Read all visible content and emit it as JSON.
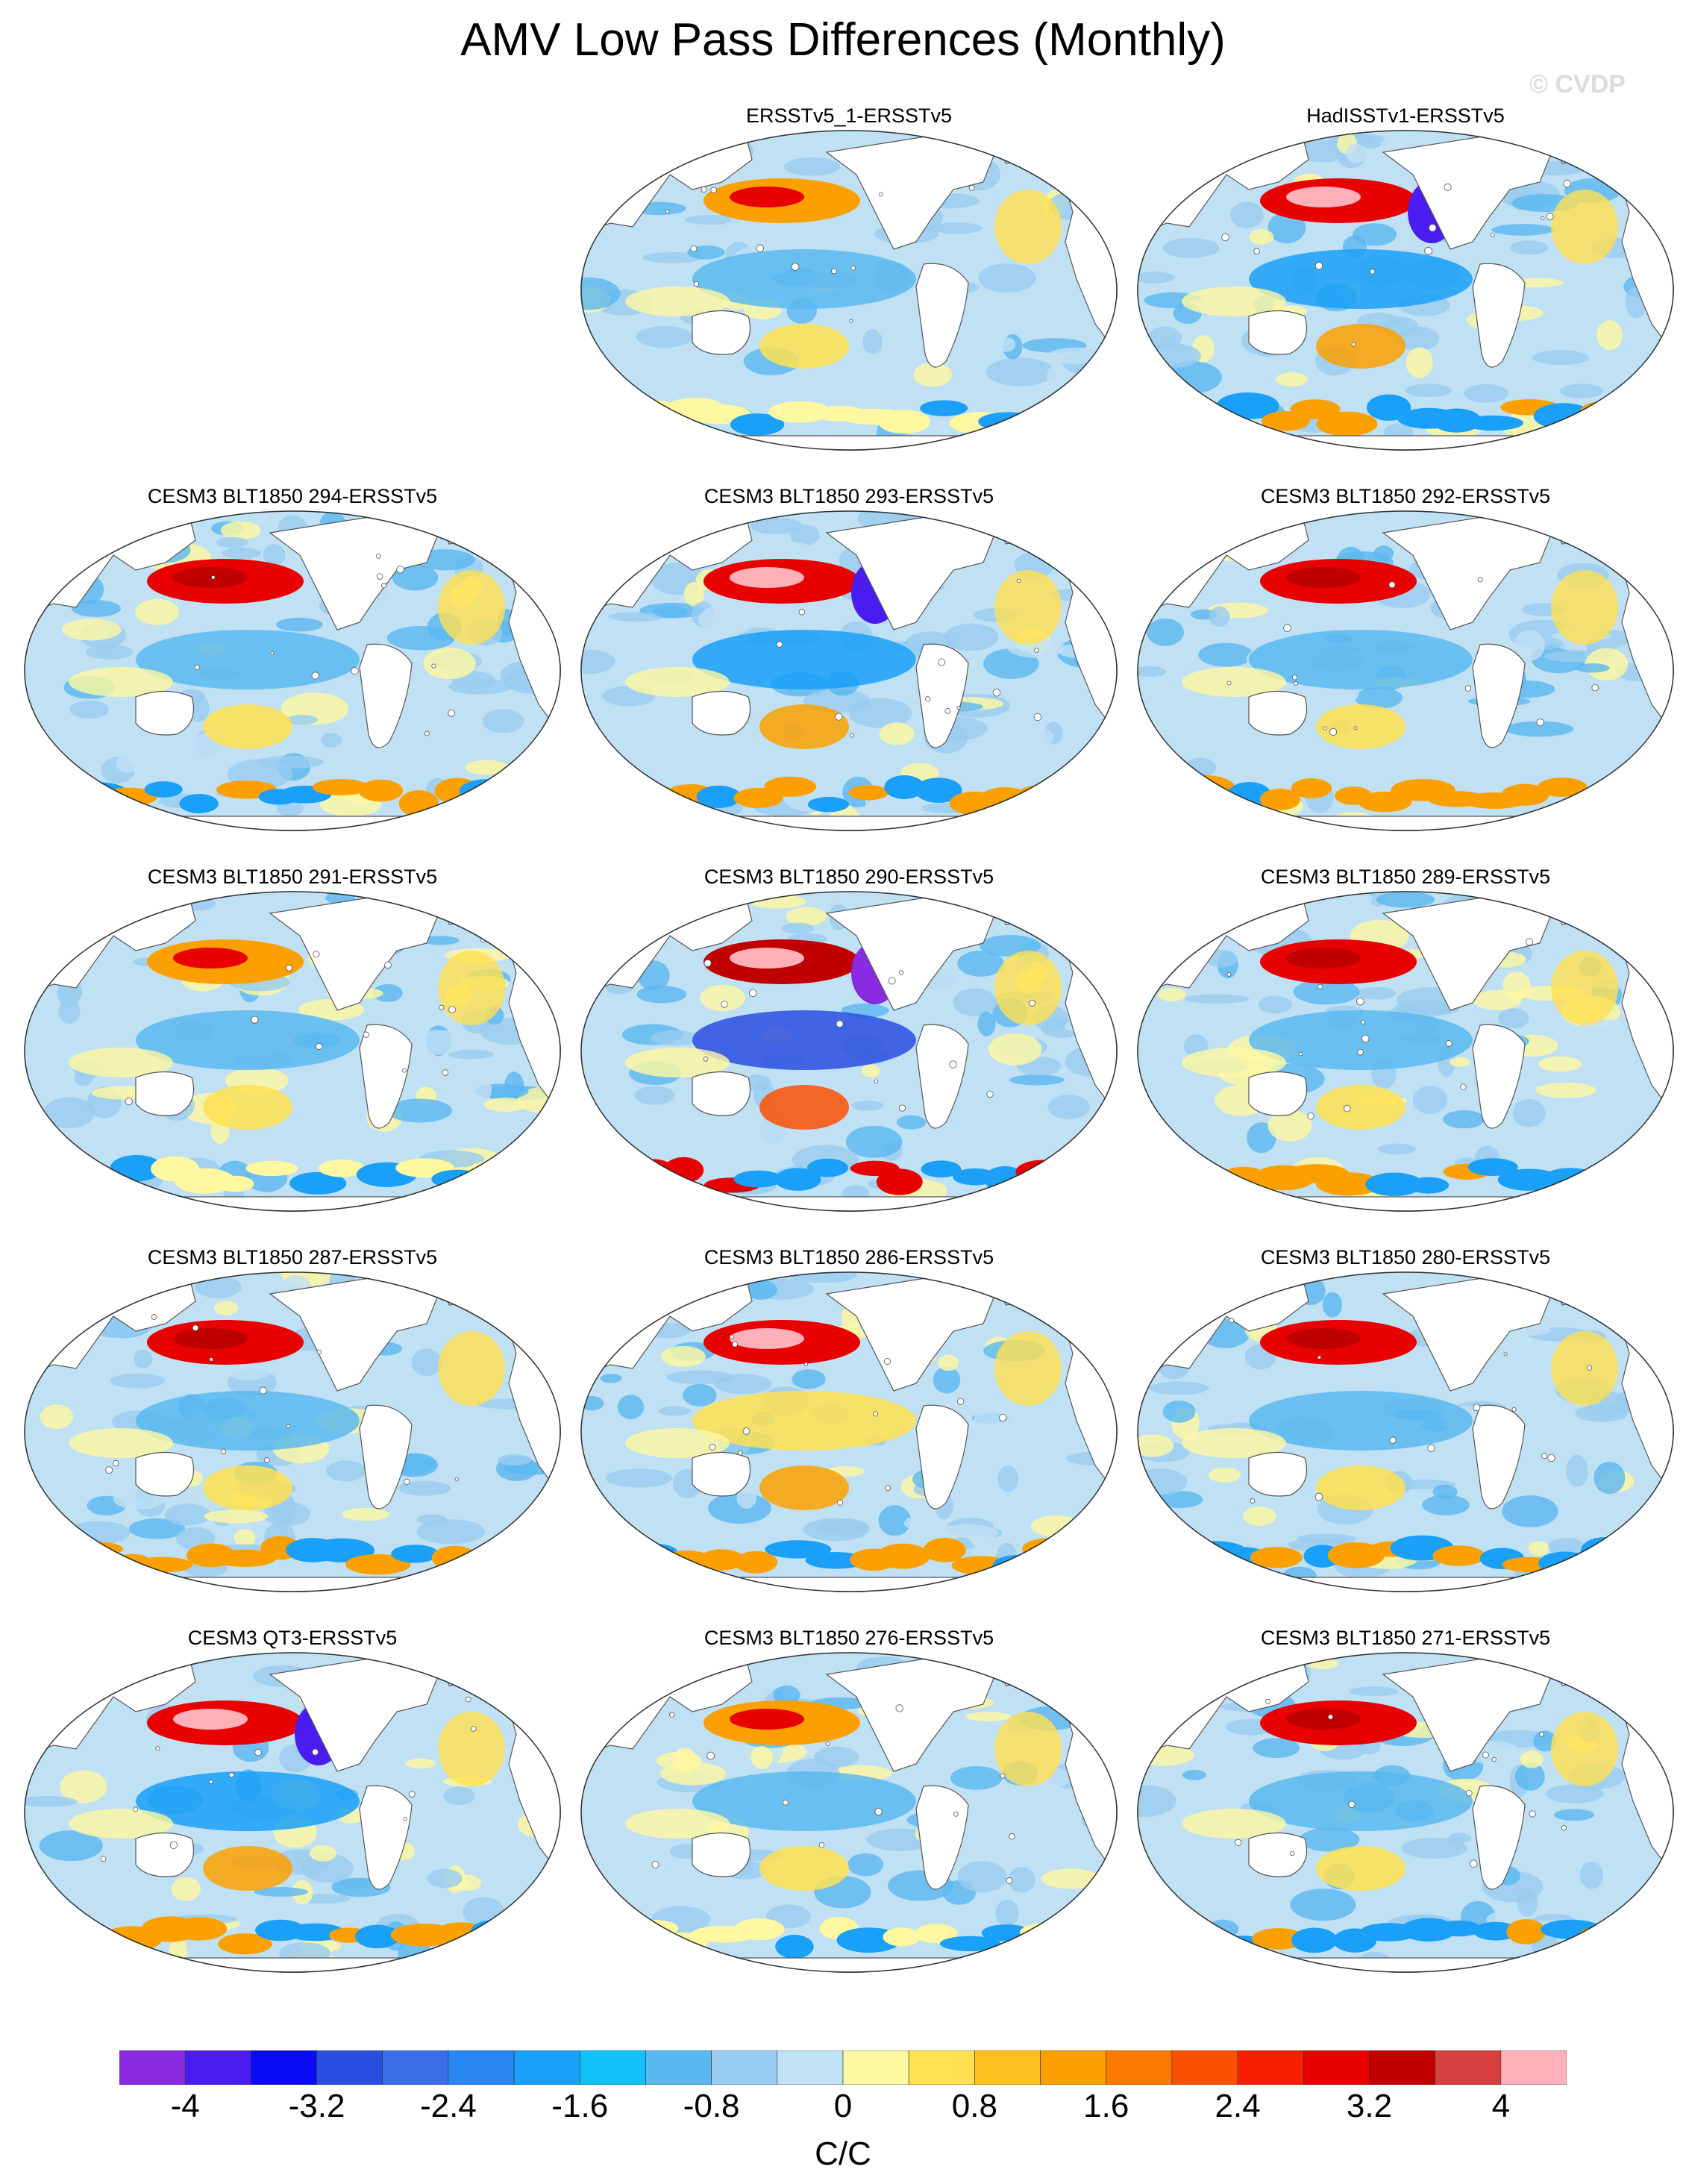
{
  "figure": {
    "title": "AMV Low Pass Differences (Monthly)",
    "credit": "© CVDP"
  },
  "panels": [
    {
      "title": "ERSSTv5_1-ERSSTv5",
      "row": 0,
      "col": 1,
      "pattern": "moderate"
    },
    {
      "title": "HadISSTv1-ERSSTv5",
      "row": 0,
      "col": 2,
      "pattern": "cold-npac"
    },
    {
      "title": "CESM3 BLT1850 294-ERSSTv5",
      "row": 1,
      "col": 0,
      "pattern": "warm-npac"
    },
    {
      "title": "CESM3 BLT1850 293-ERSSTv5",
      "row": 1,
      "col": 1,
      "pattern": "cold-npac"
    },
    {
      "title": "CESM3 BLT1850 292-ERSSTv5",
      "row": 1,
      "col": 2,
      "pattern": "warm-npac"
    },
    {
      "title": "CESM3 BLT1850 291-ERSSTv5",
      "row": 2,
      "col": 0,
      "pattern": "moderate"
    },
    {
      "title": "CESM3 BLT1850 290-ERSSTv5",
      "row": 2,
      "col": 1,
      "pattern": "strong"
    },
    {
      "title": "CESM3 BLT1850 289-ERSSTv5",
      "row": 2,
      "col": 2,
      "pattern": "warm-npac"
    },
    {
      "title": "CESM3 BLT1850 287-ERSSTv5",
      "row": 3,
      "col": 0,
      "pattern": "warm-npac"
    },
    {
      "title": "CESM3 BLT1850 286-ERSSTv5",
      "row": 3,
      "col": 1,
      "pattern": "warm-tropics"
    },
    {
      "title": "CESM3 BLT1850 280-ERSSTv5",
      "row": 3,
      "col": 2,
      "pattern": "warm-npac"
    },
    {
      "title": "CESM3 QT3-ERSSTv5",
      "row": 4,
      "col": 0,
      "pattern": "cold-npac"
    },
    {
      "title": "CESM3 BLT1850 276-ERSSTv5",
      "row": 4,
      "col": 1,
      "pattern": "moderate"
    },
    {
      "title": "CESM3 BLT1850 271-ERSSTv5",
      "row": 4,
      "col": 2,
      "pattern": "warm-npac"
    }
  ],
  "colorbar": {
    "colors": [
      "#8a2be2",
      "#4b1cf0",
      "#0a0af5",
      "#2a4ee0",
      "#3a6ee8",
      "#2a86f2",
      "#1aa0f8",
      "#10c0f8",
      "#5ab8f0",
      "#98ccf0",
      "#c0e0f4",
      "#fff8a0",
      "#ffe050",
      "#fcc020",
      "#fca000",
      "#fc7800",
      "#fc5000",
      "#f82000",
      "#e80000",
      "#c00000",
      "#d84040",
      "#ffb0b8"
    ],
    "labels": [
      "-4",
      "-3.2",
      "-2.4",
      "-1.6",
      "-0.8",
      "0",
      "0.8",
      "1.6",
      "2.4",
      "3.2",
      "4"
    ],
    "units": "C/C"
  }
}
